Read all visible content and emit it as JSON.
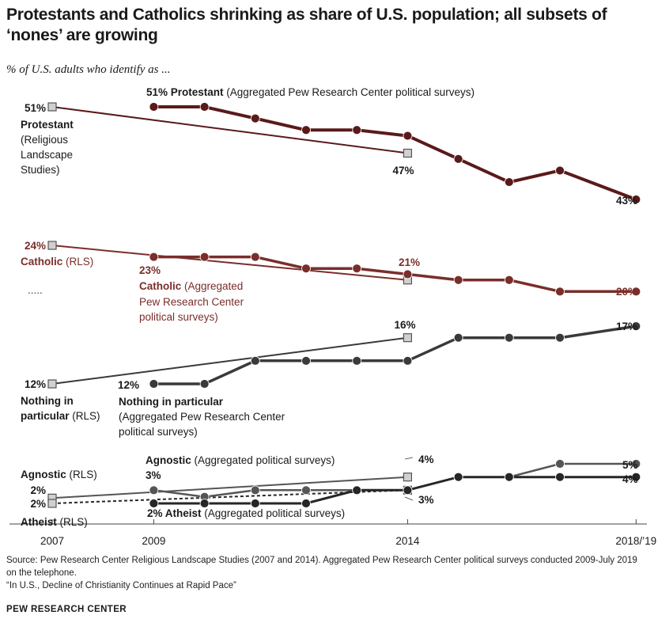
{
  "title": "Protestants and Catholics shrinking as share of U.S. population; all subsets of ‘nones’ are growing",
  "subtitle": "% of U.S. adults who identify as ...",
  "ellipsis": ".....",
  "source": "Source: Pew Research Center Religious Landscape Studies (2007 and 2014). Aggregated Pew Research Center political surveys conducted 2009-July 2019 on the telephone.",
  "report": "“In U.S., Decline of Christianity Continues at Rapid Pace”",
  "brand": "PEW RESEARCH CENTER",
  "colors": {
    "protestant": "#5a1a1a",
    "catholic": "#7a2e2a",
    "nothing": "#3a3a3a",
    "atheist": "#262626",
    "agnostic": "#555555",
    "rls_marker_fill": "#d0d0d0"
  },
  "chart_data": {
    "type": "line",
    "x_ticks": [
      {
        "x": 2007,
        "label": "2007"
      },
      {
        "x": 2009,
        "label": "2009"
      },
      {
        "x": 2014,
        "label": "2014"
      },
      {
        "x": 2018.5,
        "label": "2018/’19"
      }
    ],
    "series": [
      {
        "id": "prot_rls",
        "marker": "square",
        "x": [
          2007,
          2014
        ],
        "y": [
          51,
          47
        ]
      },
      {
        "id": "prot_agg",
        "marker": "circle",
        "x": [
          2009,
          2010,
          2011,
          2012,
          2013,
          2014,
          2015,
          2016,
          2017,
          2018.5
        ],
        "y": [
          51,
          51,
          50,
          49,
          49,
          48.5,
          46.5,
          44.5,
          45.5,
          43
        ]
      },
      {
        "id": "cath_rls",
        "marker": "square",
        "x": [
          2007,
          2014
        ],
        "y": [
          24,
          21
        ]
      },
      {
        "id": "cath_agg",
        "marker": "circle",
        "x": [
          2009,
          2010,
          2011,
          2012,
          2013,
          2014,
          2015,
          2016,
          2017,
          2018.5
        ],
        "y": [
          23,
          23,
          23,
          22,
          22,
          21.5,
          21,
          21,
          20,
          20
        ]
      },
      {
        "id": "nip_rls",
        "marker": "square",
        "x": [
          2007,
          2014
        ],
        "y": [
          12,
          16
        ]
      },
      {
        "id": "nip_agg",
        "marker": "circle",
        "x": [
          2009,
          2010,
          2011,
          2012,
          2013,
          2014,
          2015,
          2016,
          2017,
          2018.5
        ],
        "y": [
          12,
          12,
          14,
          14,
          14,
          14,
          16,
          16,
          16,
          17
        ]
      },
      {
        "id": "agn_rls",
        "marker": "square",
        "x": [
          2007,
          2014
        ],
        "y": [
          2.4,
          4
        ]
      },
      {
        "id": "agn_agg",
        "marker": "circle",
        "x": [
          2009,
          2010,
          2011,
          2012,
          2013,
          2014,
          2015,
          2016,
          2017,
          2018.5
        ],
        "y": [
          3,
          2.5,
          3,
          3,
          3,
          3,
          4,
          4,
          5,
          5
        ]
      },
      {
        "id": "ath_rls",
        "marker": "square",
        "dashed": true,
        "x": [
          2007,
          2014
        ],
        "y": [
          2,
          3
        ]
      },
      {
        "id": "ath_agg",
        "marker": "circle",
        "x": [
          2009,
          2010,
          2011,
          2012,
          2013,
          2014,
          2015,
          2016,
          2017,
          2018.5
        ],
        "y": [
          2,
          2,
          2,
          2,
          3,
          3,
          4,
          4,
          4,
          4
        ]
      }
    ],
    "labels": {
      "prot_rls_start": "51%",
      "prot_rls_name": [
        "Protestant",
        "(Religious",
        "Landscape",
        "Studies)"
      ],
      "prot_rls_end": "47%",
      "prot_agg_start_value": "51% Protestant",
      "prot_agg_start_rest": " (Aggregated Pew Research Center political surveys)",
      "prot_agg_end": "43%",
      "cath_rls_start": "24%",
      "cath_rls_name_bold": "Catholic",
      "cath_rls_name_rest": " (RLS)",
      "cath_agg_start": "23%",
      "cath_rls_end": "21%",
      "cath_agg_name_bold": "Catholic",
      "cath_agg_name_rest": " (Aggregated",
      "cath_agg_name_lines": [
        "Pew Research Center",
        "political surveys)"
      ],
      "cath_agg_end": "20%",
      "nip_rls_start": "12%",
      "nip_rls_name_bold": [
        "Nothing in",
        "particular"
      ],
      "nip_rls_name_rest": " (RLS)",
      "nip_agg_start": "12%",
      "nip_agg_name_bold": "Nothing in particular",
      "nip_agg_name_lines": [
        "(Aggregated Pew Research Center",
        "political surveys)"
      ],
      "nip_rls_end": "16%",
      "nip_agg_end": "17%",
      "agn_rls_name_bold": "Agnostic",
      "agn_rls_name_rest": " (RLS)",
      "agn_rls_start": "2%",
      "ath_rls_start": "2%",
      "ath_rls_name_bold": "Atheist",
      "ath_rls_name_rest": " (RLS)",
      "agn_agg_name_bold": "Agnostic",
      "agn_agg_name_rest": " (Aggregated political surveys)",
      "agn_agg_start": "3%",
      "ath_agg_name_bold": "2% Atheist",
      "ath_agg_name_rest": " (Aggregated political surveys)",
      "agn_rls_end": "4%",
      "ath_rls_end": "3%",
      "agn_agg_end": "5%",
      "ath_agg_end": "4%"
    }
  }
}
